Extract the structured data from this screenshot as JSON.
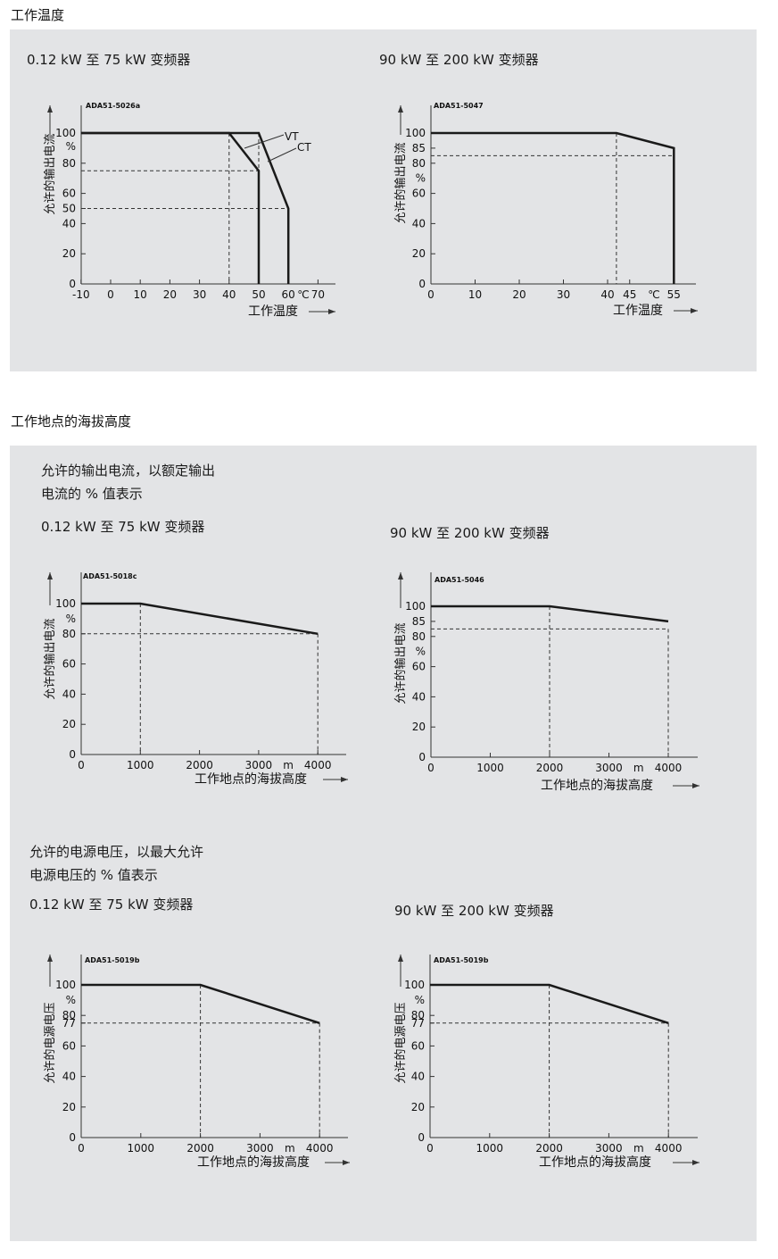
{
  "sections": {
    "temperature": {
      "heading": "工作温度",
      "small_title": "0.12 kW 至 75 kW 变频器",
      "large_title": "90 kW 至 200 kW 变频器"
    },
    "altitude": {
      "heading": "工作地点的海拔高度",
      "current_intro": [
        "允许的输出电流，以额定输出",
        "电流的 % 值表示"
      ],
      "current_small_title": "0.12 kW 至 75 kW 变频器",
      "current_large_title": "90 kW 至 200 kW 变频器",
      "voltage_intro": [
        "允许的电源电压，以最大允许",
        "电源电压的 % 值表示"
      ],
      "voltage_small_title": "0.12 kW 至 75 kW 变频器",
      "voltage_large_title": "90 kW 至 200 kW 变频器"
    }
  },
  "chart_data": [
    {
      "id": "temp-small",
      "type": "line",
      "code": "ADA51-5026a",
      "ylabel": "允许的输出电流",
      "xlabel": "工作温度",
      "y_ticks": [
        "100",
        "%",
        "80",
        "60",
        "50",
        "40",
        "20",
        "0"
      ],
      "x_ticks": [
        "-10",
        "0",
        "10",
        "20",
        "30",
        "40",
        "50",
        "60",
        "℃",
        "70"
      ],
      "series": [
        {
          "name": "VT",
          "x": [
            -10,
            40,
            50,
            50
          ],
          "y": [
            100,
            100,
            75,
            0
          ]
        },
        {
          "name": "CT",
          "x": [
            -10,
            50,
            60,
            60
          ],
          "y": [
            100,
            100,
            50,
            0
          ]
        }
      ],
      "xlim": [
        -10,
        72
      ],
      "ylim": [
        0,
        100
      ]
    },
    {
      "id": "temp-large",
      "type": "line",
      "code": "ADA51-5047",
      "ylabel": "允许的输出电流",
      "xlabel": "工作温度",
      "y_ticks": [
        "100",
        "85",
        "80",
        "%",
        "60",
        "40",
        "20",
        "0"
      ],
      "x_ticks": [
        "0",
        "10",
        "20",
        "30",
        "40",
        "45",
        "℃",
        "55"
      ],
      "series": [
        {
          "x": [
            0,
            42,
            55,
            55
          ],
          "y": [
            100,
            100,
            85,
            0
          ]
        }
      ],
      "xlim": [
        0,
        60
      ],
      "ylim": [
        0,
        100
      ]
    },
    {
      "id": "alt-current-small",
      "type": "line",
      "code": "ADA51-5018c",
      "ylabel": "允许的输出电流",
      "xlabel": "工作地点的海拔高度",
      "y_ticks": [
        "100",
        "%",
        "80",
        "60",
        "40",
        "20",
        "0"
      ],
      "x_ticks": [
        "0",
        "1000",
        "2000",
        "3000",
        "m",
        "4000"
      ],
      "series": [
        {
          "x": [
            0,
            1000,
            4000
          ],
          "y": [
            100,
            100,
            80
          ]
        }
      ],
      "xlim": [
        0,
        4500
      ],
      "ylim": [
        0,
        100
      ]
    },
    {
      "id": "alt-current-large",
      "type": "line",
      "code": "ADA51-5046",
      "ylabel": "允许的输出电流",
      "xlabel": "工作地点的海拔高度",
      "y_ticks": [
        "100",
        "85",
        "80",
        "%",
        "60",
        "40",
        "20",
        "0"
      ],
      "x_ticks": [
        "0",
        "1000",
        "2000",
        "3000",
        "m",
        "4000"
      ],
      "series": [
        {
          "x": [
            0,
            2000,
            4000
          ],
          "y": [
            100,
            100,
            85
          ]
        }
      ],
      "xlim": [
        0,
        4500
      ],
      "ylim": [
        0,
        100
      ]
    },
    {
      "id": "alt-voltage-small",
      "type": "line",
      "code": "ADA51-5019b",
      "ylabel": "允许的电源电压",
      "xlabel": "工作地点的海拔高度",
      "y_ticks": [
        "100",
        "%",
        "80",
        "77",
        "60",
        "40",
        "20",
        "0"
      ],
      "x_ticks": [
        "0",
        "1000",
        "2000",
        "3000",
        "m",
        "4000"
      ],
      "series": [
        {
          "x": [
            0,
            2000,
            4000
          ],
          "y": [
            100,
            100,
            77
          ]
        }
      ],
      "xlim": [
        0,
        4500
      ],
      "ylim": [
        0,
        100
      ]
    },
    {
      "id": "alt-voltage-large",
      "type": "line",
      "code": "ADA51-5019b",
      "ylabel": "允许的电源电压",
      "xlabel": "工作地点的海拔高度",
      "y_ticks": [
        "100",
        "%",
        "80",
        "77",
        "60",
        "40",
        "20",
        "0"
      ],
      "x_ticks": [
        "0",
        "1000",
        "2000",
        "3000",
        "m",
        "4000"
      ],
      "series": [
        {
          "x": [
            0,
            2000,
            4000
          ],
          "y": [
            100,
            100,
            77
          ]
        }
      ],
      "xlim": [
        0,
        4500
      ],
      "ylim": [
        0,
        100
      ]
    }
  ]
}
